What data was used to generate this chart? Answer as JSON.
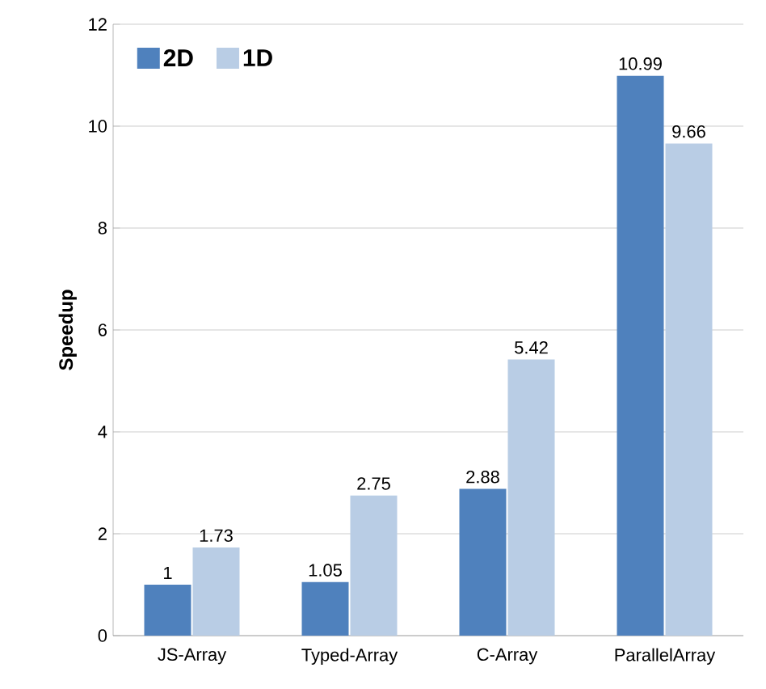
{
  "chart_data": {
    "type": "bar",
    "ylabel": "Speedup",
    "categories": [
      "JS-Array",
      "Typed-Array",
      "C-Array",
      "ParallelArray"
    ],
    "series": [
      {
        "name": "2D",
        "color": "#4f81bd",
        "values": [
          1,
          1.05,
          2.88,
          10.99
        ]
      },
      {
        "name": "1D",
        "color": "#b9cde5",
        "values": [
          1.73,
          2.75,
          5.42,
          9.66
        ]
      }
    ],
    "ylim": [
      0,
      12
    ],
    "yticks": [
      0,
      2,
      4,
      6,
      8,
      10,
      12
    ],
    "grid": "y",
    "legend": "top left",
    "data_labels": true
  }
}
